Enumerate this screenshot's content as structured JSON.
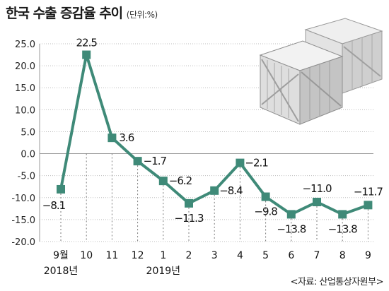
{
  "header": {
    "title": "한국 수출 증감율 추이",
    "unit": "(단위:%)"
  },
  "source": "<자료: 산업통상자원부>",
  "colors": {
    "line": "#3f8a78",
    "marker": "#3f8a78",
    "grid": "#bdbdbd",
    "drop": "#7a7a7a"
  },
  "illustration": {
    "name": "wooden-crates-icon"
  },
  "chart_data": {
    "type": "line",
    "title": "한국 수출 증감율 추이",
    "unit": "(단위:%)",
    "categories": [
      "9월",
      "10",
      "11",
      "12",
      "1",
      "2",
      "3",
      "4",
      "5",
      "6",
      "7",
      "8",
      "9"
    ],
    "year_labels": [
      {
        "index": 0,
        "label": "2018년"
      },
      {
        "index": 4,
        "label": "2019년"
      }
    ],
    "values": [
      -8.1,
      22.5,
      3.6,
      -1.7,
      -6.2,
      -11.3,
      -8.4,
      -2.1,
      -9.8,
      -13.8,
      -11.0,
      -13.8,
      -11.7
    ],
    "value_labels": [
      "−8.1",
      "22.5",
      "3.6",
      "−1.7",
      "−6.2",
      "−11.3",
      "−8.4",
      "−2.1",
      "−9.8",
      "−13.8",
      "−11.0",
      "−13.8",
      "−11.7"
    ],
    "yticks": [
      25.0,
      20.0,
      15.0,
      10.0,
      5.0,
      0.0,
      -5.0,
      -10.0,
      -15.0,
      -20.0
    ],
    "ytick_labels": [
      "25.0",
      "20.0",
      "15.0",
      "10.0",
      "5.0",
      "0.0",
      "-5.0",
      "-10.0",
      "-15.0",
      "-20.0"
    ],
    "ylim": [
      -20,
      25
    ],
    "grid": true
  }
}
